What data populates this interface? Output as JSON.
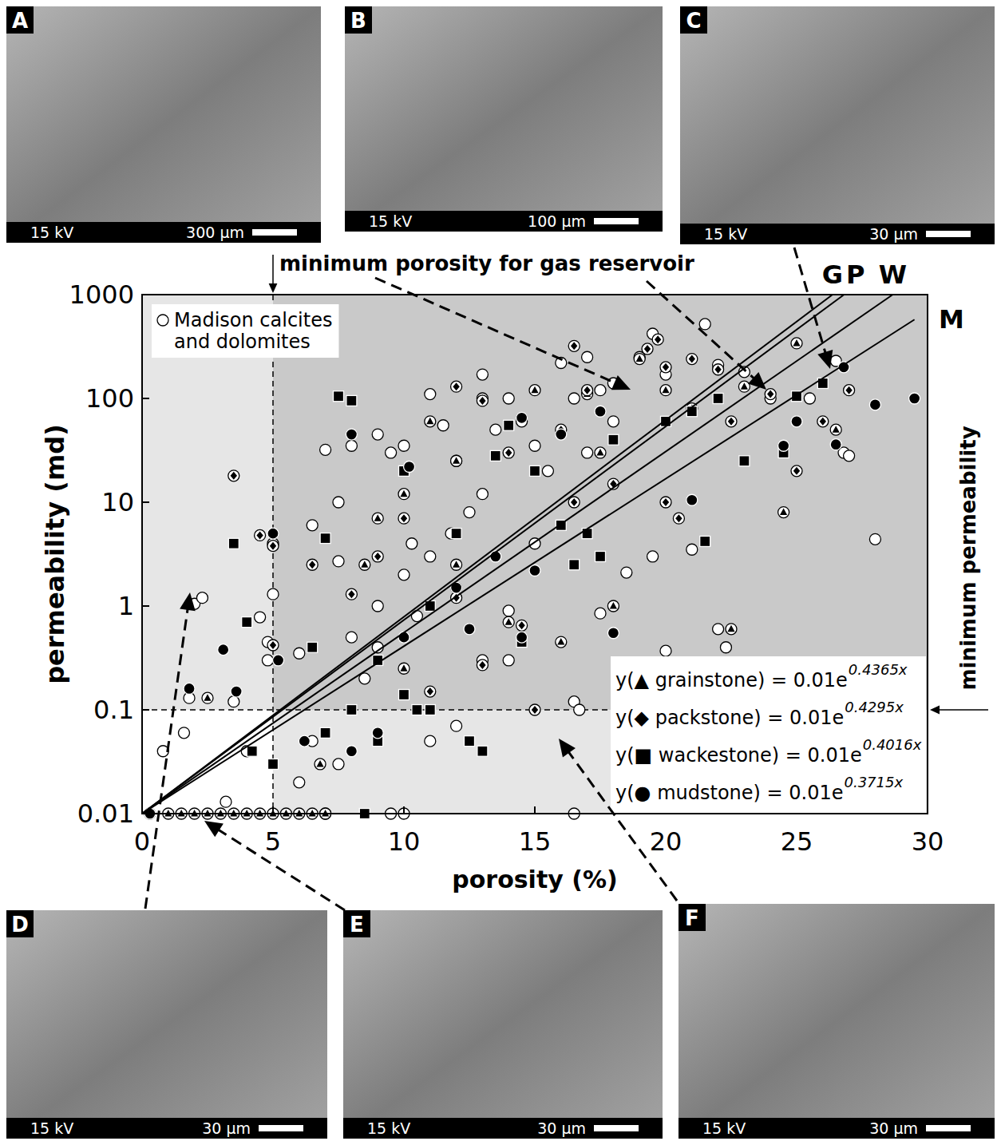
{
  "chart_data": {
    "type": "scatter",
    "xlabel": "porosity (%)",
    "ylabel": "permeability (md)",
    "xlim": [
      0,
      30
    ],
    "ylim": [
      0.01,
      1000
    ],
    "xticks": [
      0,
      5,
      10,
      15,
      20,
      25,
      30
    ],
    "yticks": [
      0.01,
      0.1,
      1,
      10,
      100,
      1000
    ],
    "log": "y",
    "legend": "top-left",
    "annotations": [
      {
        "text": "minimum porosity for gas reservoir",
        "x": 5
      },
      {
        "text": "minimum permeability",
        "y": 0.1
      }
    ],
    "series": [
      {
        "name": "Madison calcites and dolomites",
        "marker": "circle-open",
        "color": "#ffffff",
        "x": [
          2,
          2.3,
          1.8,
          1.6,
          0.8,
          3.5,
          4.5,
          4.8,
          5,
          4.8,
          6.5,
          7.5,
          7,
          8,
          9,
          9.5,
          10,
          11,
          11.5,
          12,
          12.5,
          13,
          13.5,
          14,
          14.5,
          15.5,
          16,
          16.5,
          17,
          17.5,
          18,
          19.5,
          19,
          20,
          21.5,
          22,
          23,
          24,
          25.5,
          26.5,
          26.8,
          27,
          28,
          19.5,
          21,
          20,
          22,
          22.3,
          16.5,
          16.7,
          16.5,
          9.5,
          10,
          7,
          7.5,
          6,
          6.5,
          8,
          9,
          10,
          11,
          12,
          13,
          14,
          15,
          14,
          11,
          12,
          18.5,
          17.5,
          3.2,
          4,
          10.5,
          9,
          8.5,
          7.5,
          6,
          17,
          18,
          15,
          13,
          11.8,
          10.3
        ],
        "values": [
          1.05,
          1.2,
          0.13,
          0.06,
          0.04,
          0.12,
          0.78,
          0.45,
          1.3,
          0.3,
          6,
          10,
          32,
          35,
          45,
          30,
          35,
          110,
          55,
          25,
          8,
          170,
          50,
          100,
          60,
          20,
          220,
          100,
          250,
          120,
          140,
          420,
          250,
          170,
          520,
          210,
          180,
          100,
          100,
          230,
          30,
          28,
          4.4,
          3,
          3.5,
          0.37,
          0.6,
          0.4,
          0.12,
          0.1,
          0.01,
          0.01,
          0.01,
          0.01,
          0.03,
          0.02,
          0.05,
          0.5,
          1,
          2,
          3,
          1.5,
          0.3,
          0.9,
          4,
          0.3,
          0.05,
          0.07,
          2.1,
          0.85,
          0.013,
          0.04,
          0.8,
          0.4,
          0.2,
          2.7,
          0.35,
          30,
          60,
          35,
          12,
          5,
          4
        ]
      },
      {
        "marker": "circle-triangle",
        "color": "#000000",
        "x": [
          0.3,
          1,
          1.5,
          2,
          2.5,
          3,
          3.5,
          4,
          4.5,
          5,
          5.5,
          6,
          6.5,
          7,
          2.5,
          5,
          6.8,
          9,
          10,
          11,
          12,
          13,
          15,
          17,
          17.5,
          19,
          20,
          25,
          26.5,
          24.5,
          22.5,
          14,
          16,
          10,
          18,
          8.5,
          12,
          21,
          23
        ],
        "values": [
          0.01,
          0.01,
          0.01,
          0.01,
          0.01,
          0.01,
          0.01,
          0.01,
          0.01,
          0.01,
          0.01,
          0.01,
          0.01,
          0.01,
          0.13,
          4,
          0.03,
          7,
          12,
          60,
          25,
          100,
          120,
          110,
          30,
          240,
          120,
          340,
          50,
          8,
          0.6,
          0.7,
          0.45,
          0.25,
          1,
          2.5,
          2.5,
          80,
          130
        ]
      },
      {
        "marker": "circle-diamond",
        "color": "#000000",
        "x": [
          3.5,
          4.5,
          5,
          5,
          6.5,
          8,
          9,
          10,
          12,
          13,
          14,
          16,
          16.5,
          17,
          16.5,
          19.3,
          19.7,
          20,
          20.5,
          21,
          22,
          22.5,
          25,
          26,
          27,
          15,
          13,
          11,
          20,
          24,
          14.5,
          12,
          18
        ],
        "values": [
          18,
          4.8,
          3.8,
          0.42,
          2.5,
          1.3,
          3,
          7,
          130,
          95,
          30,
          50,
          10,
          120,
          320,
          300,
          370,
          10,
          7,
          240,
          190,
          60,
          20,
          60,
          120,
          0.1,
          0.27,
          0.15,
          200,
          110,
          0.65,
          1.2,
          15
        ]
      },
      {
        "marker": "square",
        "color": "#000000",
        "x": [
          3.5,
          4,
          4.2,
          5,
          7.5,
          8,
          7,
          6.5,
          7,
          8,
          8.5,
          9,
          10,
          10,
          10.5,
          11,
          12.5,
          13,
          13.5,
          14,
          15,
          16,
          17,
          17.5,
          18,
          20,
          21,
          21.5,
          22,
          23,
          24.5,
          25,
          26,
          16.5,
          14.5,
          12,
          9,
          11
        ],
        "values": [
          4,
          0.7,
          0.04,
          0.03,
          105,
          95,
          4.5,
          0.4,
          0.06,
          0.1,
          0.01,
          0.05,
          20,
          0.14,
          0.1,
          0.1,
          0.05,
          0.04,
          28,
          55,
          20,
          6,
          5,
          3,
          40,
          60,
          75,
          4.2,
          100,
          25,
          30,
          105,
          140,
          2.5,
          0.45,
          5,
          0.3,
          1
        ]
      },
      {
        "marker": "circle",
        "color": "#000000",
        "x": [
          0.3,
          1.8,
          3.1,
          3.6,
          5,
          5.2,
          6.2,
          8,
          8,
          9,
          10.2,
          12,
          12.5,
          14.5,
          14.5,
          17.5,
          18,
          21,
          22,
          24.5,
          25,
          26.5,
          26.8,
          28,
          29.5,
          13.5,
          16,
          15,
          10
        ],
        "values": [
          0.01,
          0.16,
          0.38,
          0.15,
          5,
          0.3,
          0.05,
          45,
          0.04,
          0.06,
          22,
          1.5,
          0.6,
          0.5,
          65,
          75,
          0.55,
          10.5,
          0.12,
          35,
          60,
          36,
          200,
          87,
          100,
          3,
          45,
          2.2,
          0.5
        ]
      },
      {
        "name": "G",
        "type": "line",
        "color": "#000000",
        "equation": "y(▲ grainstone) = 0.01e",
        "exponent": "0.4365x",
        "x": [
          0,
          26.37
        ],
        "values": [
          0.01,
          1000
        ]
      },
      {
        "name": "P",
        "type": "line",
        "color": "#000000",
        "equation": "y(◆ packstone) = 0.01e",
        "exponent": "0.4295x",
        "x": [
          0,
          26.81
        ],
        "values": [
          0.01,
          1000
        ]
      },
      {
        "name": "W",
        "type": "line",
        "color": "#000000",
        "equation": "y(■ wackestone) = 0.01e",
        "exponent": "0.4016x",
        "x": [
          0,
          28.67
        ],
        "values": [
          0.01,
          1000
        ]
      },
      {
        "name": "M",
        "type": "line",
        "color": "#000000",
        "equation": "y(● mudstone) = 0.01e",
        "exponent": "0.3715x",
        "x": [
          0,
          29.5
        ],
        "values": [
          0.01,
          574.6
        ]
      }
    ]
  },
  "panels": [
    {
      "letter": "A",
      "voltage": "15 kV",
      "scale": "300 µm"
    },
    {
      "letter": "B",
      "voltage": "15 kV",
      "scale": "100 µm"
    },
    {
      "letter": "C",
      "voltage": "15 kV",
      "scale": "30 µm"
    },
    {
      "letter": "D",
      "voltage": "15 kV",
      "scale": "30 µm"
    },
    {
      "letter": "E",
      "voltage": "15 kV",
      "scale": "30 µm"
    },
    {
      "letter": "F",
      "voltage": "15 kV",
      "scale": "30 µm"
    }
  ]
}
